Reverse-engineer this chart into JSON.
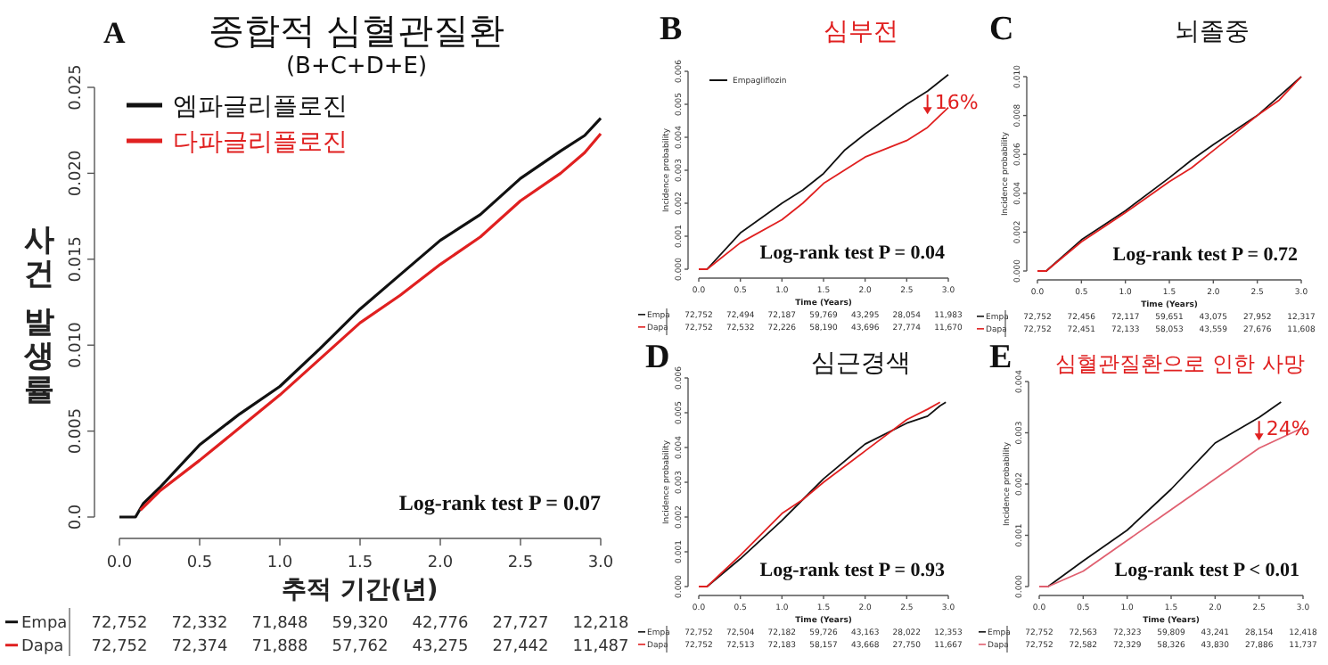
{
  "chart_data": [
    {
      "type": "step",
      "title": "종합적 심혈관질환",
      "subtitle": "(B+C+D+E)",
      "xlabel": "추적 기간(년)",
      "ylabel": "사건 발생률",
      "legend": "top left",
      "xlim": [
        0,
        3.0
      ],
      "ylim": [
        0,
        0.025
      ],
      "xticks": [
        {
          "value": 0,
          "label": "0.0"
        },
        {
          "value": 0.5,
          "label": "0.5"
        },
        {
          "value": 1,
          "label": "1.0"
        },
        {
          "value": 1.5,
          "label": "1.5"
        },
        {
          "value": 2,
          "label": "2.0"
        },
        {
          "value": 2.5,
          "label": "2.5"
        },
        {
          "value": 3,
          "label": "3.0"
        }
      ],
      "yticks": [
        {
          "value": 0,
          "label": "0.0"
        },
        {
          "value": 0.005,
          "label": "0.005"
        },
        {
          "value": 0.01,
          "label": "0.010"
        },
        {
          "value": 0.015,
          "label": "0.015"
        },
        {
          "value": 0.02,
          "label": "0.020"
        },
        {
          "value": 0.025,
          "label": "0.025"
        }
      ],
      "x": [
        0,
        0.1,
        0.15,
        0.25,
        0.5,
        0.75,
        1.0,
        1.25,
        1.5,
        1.75,
        2.0,
        2.25,
        2.5,
        2.75,
        2.9,
        3.0
      ],
      "series": [
        {
          "name": "엠파글리플로진",
          "color": "#111111",
          "values": [
            0,
            0,
            0.0008,
            0.0017,
            0.0042,
            0.006,
            0.0076,
            0.0098,
            0.0121,
            0.0141,
            0.0161,
            0.0176,
            0.0197,
            0.0213,
            0.0222,
            0.0232
          ]
        },
        {
          "name": "다파글리플로진",
          "color": "#e02020",
          "x": [
            0.13,
            0.25,
            0.5,
            0.75,
            1.0,
            1.25,
            1.5,
            1.75,
            2.0,
            2.25,
            2.5,
            2.75,
            2.9,
            3.0
          ],
          "values": [
            0.0004,
            0.0015,
            0.0033,
            0.0052,
            0.0071,
            0.0092,
            0.0113,
            0.0129,
            0.0147,
            0.0163,
            0.0184,
            0.02,
            0.0212,
            0.0223
          ]
        }
      ],
      "annotations": [
        "A",
        "Log-rank test P = 0.07",
        "Empa",
        "72,752",
        "72,332",
        "71,848",
        "59,320",
        "42,776",
        "27,727",
        "12,218",
        "Dapa",
        "72,752",
        "72,374",
        "71,888",
        "57,762",
        "43,275",
        "27,442",
        "11,487"
      ]
    },
    {
      "type": "step",
      "title": "심부전",
      "xlabel": "Time (Years)",
      "ylabel": "Incidence probability",
      "legend": "top left",
      "xlim": [
        0,
        3.0
      ],
      "ylim": [
        0,
        0.006
      ],
      "xticks": [
        {
          "value": 0,
          "label": "0.0"
        },
        {
          "value": 0.5,
          "label": "0.5"
        },
        {
          "value": 1,
          "label": "1.0"
        },
        {
          "value": 1.5,
          "label": "1.5"
        },
        {
          "value": 2,
          "label": "2.0"
        },
        {
          "value": 2.5,
          "label": "2.5"
        },
        {
          "value": 3,
          "label": "3.0"
        }
      ],
      "yticks": [
        {
          "value": 0,
          "label": "0.000"
        },
        {
          "value": 0.001,
          "label": "0.001"
        },
        {
          "value": 0.002,
          "label": "0.002"
        },
        {
          "value": 0.003,
          "label": "0.003"
        },
        {
          "value": 0.004,
          "label": "0.004"
        },
        {
          "value": 0.005,
          "label": "0.005"
        },
        {
          "value": 0.006,
          "label": "0.006"
        }
      ],
      "x": [
        0,
        0.1,
        0.5,
        1.0,
        1.25,
        1.5,
        1.75,
        2.0,
        2.5,
        2.75,
        3.0
      ],
      "series": [
        {
          "name": "Empagliflozin",
          "color": "#111111",
          "values": [
            0,
            0,
            0.0011,
            0.002,
            0.0024,
            0.0029,
            0.0036,
            0.0041,
            0.005,
            0.0054,
            0.0059
          ]
        },
        {
          "color": "#e02020",
          "values": [
            0,
            0,
            0.0008,
            0.0015,
            0.002,
            0.0026,
            0.003,
            0.0034,
            0.0039,
            0.0043,
            0.0049
          ]
        }
      ],
      "annotations": [
        "B",
        "Log-rank test P = 0.04",
        "Empa",
        "72,752",
        "72,494",
        "72,187",
        "59,769",
        "43,295",
        "28,054",
        "11,983",
        "Dapa",
        "72,752",
        "72,532",
        "72,226",
        "58,190",
        "43,696",
        "27,774",
        "11,670",
        {
          "text": "16%",
          "x": 2.75,
          "y": 0.0054
        }
      ]
    },
    {
      "type": "step",
      "title": "뇌졸중",
      "xlabel": "Time (Years)",
      "ylabel": "Incidence probability",
      "xlim": [
        0,
        3.0
      ],
      "ylim": [
        0,
        0.01
      ],
      "xticks": [
        {
          "value": 0,
          "label": "0.0"
        },
        {
          "value": 0.5,
          "label": "0.5"
        },
        {
          "value": 1,
          "label": "1.0"
        },
        {
          "value": 1.5,
          "label": "1.5"
        },
        {
          "value": 2,
          "label": "2.0"
        },
        {
          "value": 2.5,
          "label": "2.5"
        },
        {
          "value": 3,
          "label": "3.0"
        }
      ],
      "yticks": [
        {
          "value": 0,
          "label": "0.000"
        },
        {
          "value": 0.002,
          "label": "0.002"
        },
        {
          "value": 0.004,
          "label": "0.004"
        },
        {
          "value": 0.006,
          "label": "0.006"
        },
        {
          "value": 0.008,
          "label": "0.008"
        },
        {
          "value": 0.01,
          "label": "0.010"
        }
      ],
      "x": [
        0,
        0.1,
        0.5,
        1.0,
        1.5,
        1.75,
        2.0,
        2.5,
        2.75,
        3.0
      ],
      "series": [
        {
          "color": "#111111",
          "values": [
            0,
            0,
            0.0016,
            0.0031,
            0.0048,
            0.0057,
            0.0065,
            0.008,
            0.009,
            0.01
          ]
        },
        {
          "color": "#e02020",
          "values": [
            0,
            0,
            0.0015,
            0.003,
            0.0046,
            0.0053,
            0.0062,
            0.008,
            0.0088,
            0.01
          ]
        }
      ],
      "annotations": [
        "C",
        "Log-rank test P = 0.72",
        "Empa",
        "72,752",
        "72,456",
        "72,117",
        "59,651",
        "43,075",
        "27,952",
        "12,317",
        "Dapa",
        "72,752",
        "72,451",
        "72,133",
        "58,053",
        "43,559",
        "27,676",
        "11,608"
      ]
    },
    {
      "type": "step",
      "title": "심근경색",
      "xlabel": "Time (Years)",
      "ylabel": "Incidence probability",
      "xlim": [
        0,
        3.0
      ],
      "ylim": [
        0,
        0.006
      ],
      "xticks": [
        {
          "value": 0,
          "label": "0.0"
        },
        {
          "value": 0.5,
          "label": "0.5"
        },
        {
          "value": 1,
          "label": "1.0"
        },
        {
          "value": 1.5,
          "label": "1.5"
        },
        {
          "value": 2,
          "label": "2.0"
        },
        {
          "value": 2.5,
          "label": "2.5"
        },
        {
          "value": 3,
          "label": "3.0"
        }
      ],
      "yticks": [
        {
          "value": 0,
          "label": "0.000"
        },
        {
          "value": 0.001,
          "label": "0.001"
        },
        {
          "value": 0.002,
          "label": "0.002"
        },
        {
          "value": 0.003,
          "label": "0.003"
        },
        {
          "value": 0.004,
          "label": "0.004"
        },
        {
          "value": 0.005,
          "label": "0.005"
        },
        {
          "value": 0.006,
          "label": "0.006"
        }
      ],
      "x": [
        0,
        0.1,
        0.5,
        1.0,
        1.25,
        1.5,
        2.0,
        2.5,
        2.75,
        2.9,
        2.97
      ],
      "series": [
        {
          "color": "#111111",
          "values": [
            0,
            0,
            0.0008,
            0.0019,
            0.0025,
            0.0031,
            0.0041,
            0.0047,
            0.0049,
            0.0052,
            0.0053
          ]
        },
        {
          "color": "#e02020",
          "values": [
            0,
            0,
            0.0009,
            0.0021,
            0.0025,
            0.003,
            0.0039,
            0.0048,
            0.0051,
            0.0053,
            null
          ]
        }
      ],
      "annotations": [
        "D",
        "Log-rank test P = 0.93",
        "Empa",
        "72,752",
        "72,504",
        "72,182",
        "59,726",
        "43,163",
        "28,022",
        "12,353",
        "Dapa",
        "72,752",
        "72,513",
        "72,183",
        "58,157",
        "43,668",
        "27,750",
        "11,667"
      ]
    },
    {
      "type": "step",
      "title": "심혈관질환으로 인한 사망",
      "xlabel": "Time (Years)",
      "ylabel": "Incidence probability",
      "xlim": [
        0,
        3.0
      ],
      "ylim": [
        0,
        0.004
      ],
      "xticks": [
        {
          "value": 0,
          "label": "0.0"
        },
        {
          "value": 0.5,
          "label": "0.5"
        },
        {
          "value": 1,
          "label": "1.0"
        },
        {
          "value": 1.5,
          "label": "1.5"
        },
        {
          "value": 2,
          "label": "2.0"
        },
        {
          "value": 2.5,
          "label": "2.5"
        },
        {
          "value": 3,
          "label": "3.0"
        }
      ],
      "yticks": [
        {
          "value": 0,
          "label": "0.000"
        },
        {
          "value": 0.001,
          "label": "0.001"
        },
        {
          "value": 0.002,
          "label": "0.002"
        },
        {
          "value": 0.003,
          "label": "0.003"
        },
        {
          "value": 0.004,
          "label": "0.004"
        }
      ],
      "x": [
        0,
        0.1,
        0.5,
        1.0,
        1.5,
        2.0,
        2.5,
        2.75,
        3.0
      ],
      "series": [
        {
          "color": "#111111",
          "values": [
            0,
            0,
            0.0005,
            0.0011,
            0.0019,
            0.0028,
            0.0033,
            0.0036,
            null
          ]
        },
        {
          "color": "#e06070",
          "values": [
            0,
            0,
            0.0003,
            0.0009,
            0.0015,
            0.0021,
            0.0027,
            0.0029,
            0.0031
          ]
        }
      ],
      "annotations": [
        "E",
        "Log-rank test P < 0.01",
        "Empa",
        "72,752",
        "72,563",
        "72,323",
        "59,809",
        "43,241",
        "28,154",
        "12,418",
        "Dapa",
        "72,752",
        "72,582",
        "72,329",
        "58,326",
        "43,830",
        "27,886",
        "11,737",
        {
          "text": "24%",
          "x": 2.5,
          "y": 0.0033
        }
      ]
    }
  ]
}
